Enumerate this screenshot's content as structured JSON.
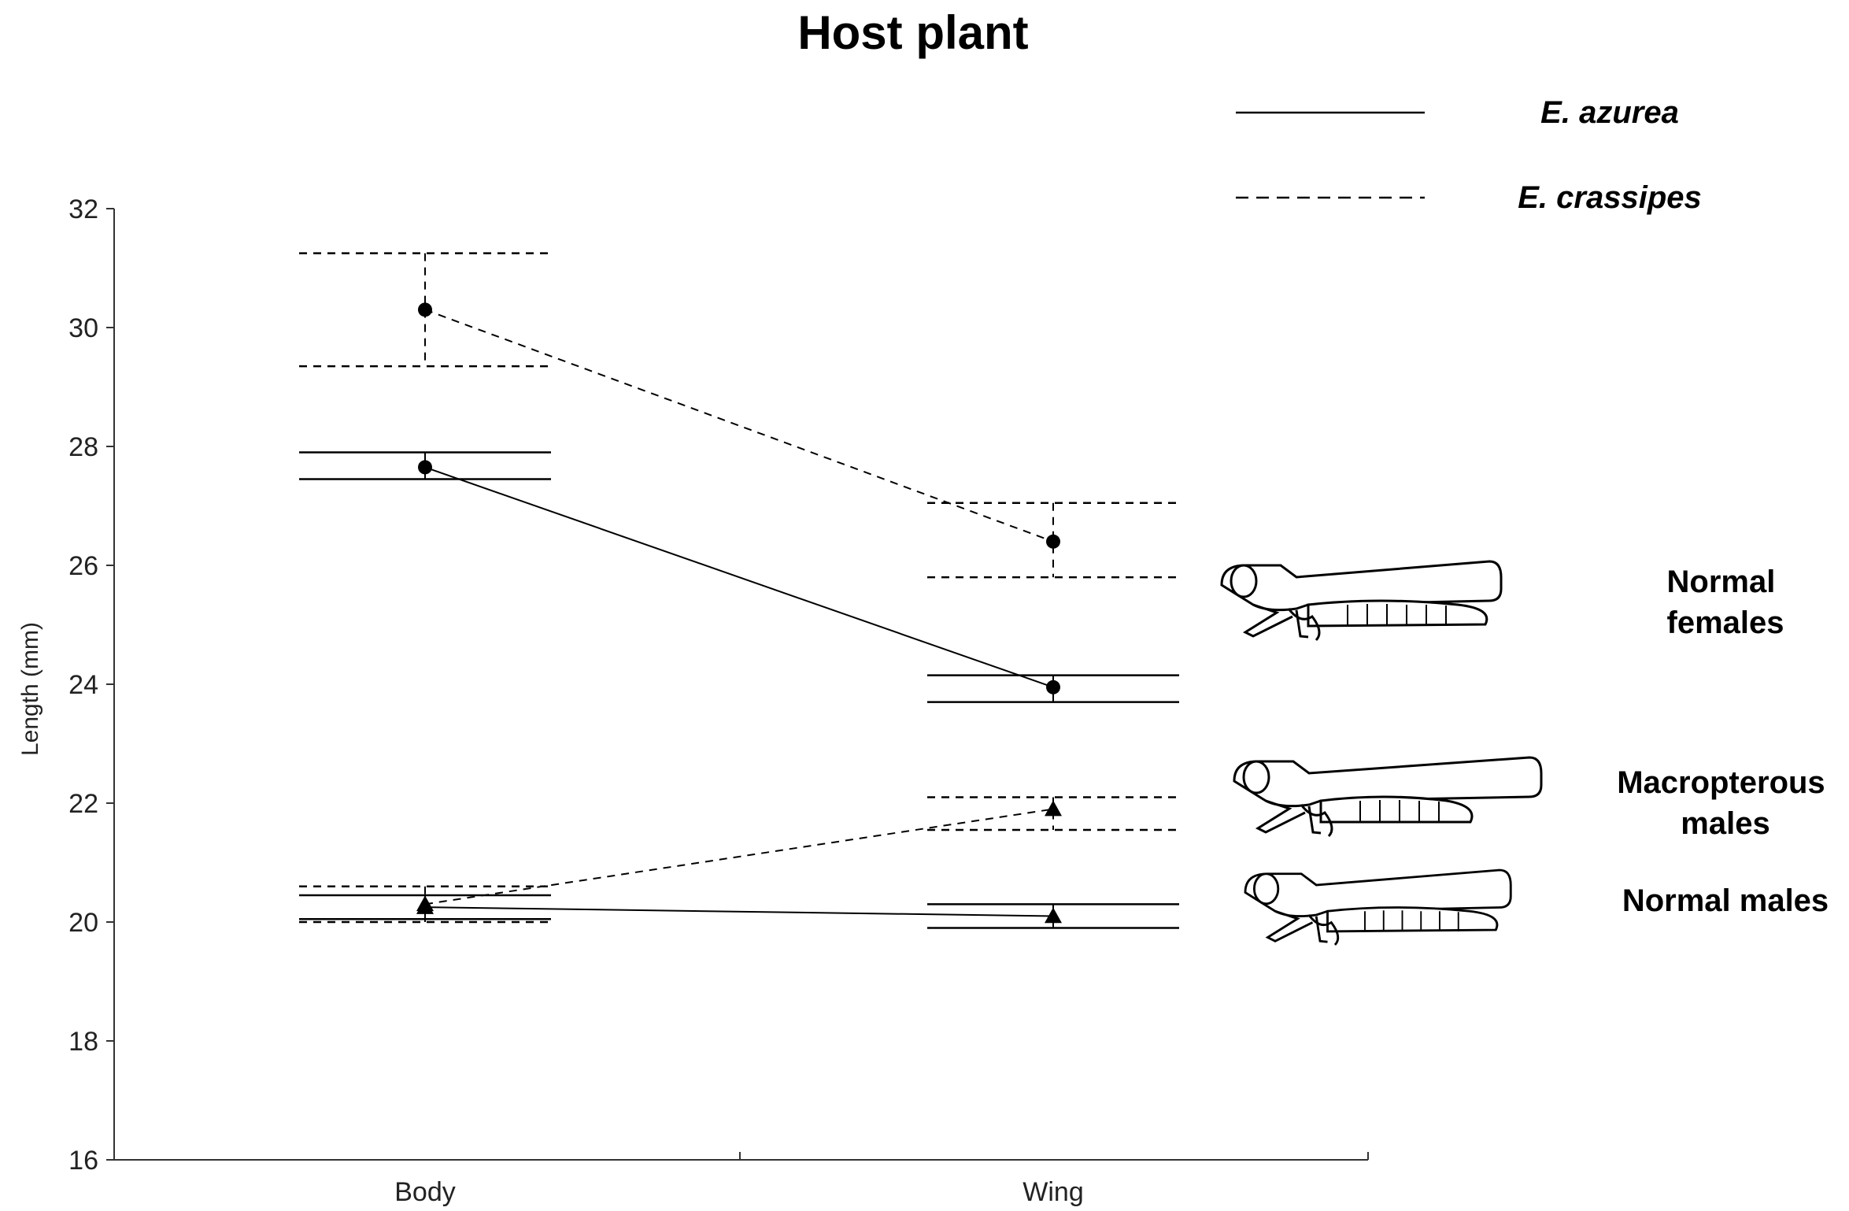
{
  "chart_data": {
    "type": "line",
    "title": "Host plant",
    "xlabel": "",
    "ylabel": "Length (mm)",
    "categories": [
      "Body",
      "Wing"
    ],
    "ylim": [
      16,
      32
    ],
    "yticks": [
      16,
      18,
      20,
      22,
      24,
      26,
      28,
      30,
      32
    ],
    "grid": false,
    "legend_position": "top-right",
    "legend": [
      {
        "label": "E. azurea",
        "style": "solid"
      },
      {
        "label": "E. crassipes",
        "style": "dashed"
      }
    ],
    "series": [
      {
        "name": "E. crassipes",
        "group": "Normal females",
        "style": "dashed",
        "marker": "circle",
        "values": [
          30.3,
          26.4
        ],
        "err_low": [
          29.35,
          25.8
        ],
        "err_high": [
          31.25,
          27.05
        ]
      },
      {
        "name": "E. azurea",
        "group": "Normal females",
        "style": "solid",
        "marker": "circle",
        "values": [
          27.65,
          23.95
        ],
        "err_low": [
          27.45,
          23.7
        ],
        "err_high": [
          27.9,
          24.15
        ]
      },
      {
        "name": "E. crassipes",
        "group": "Macropterous males",
        "style": "dashed",
        "marker": "triangle",
        "values": [
          20.3,
          21.9
        ],
        "err_low": [
          20.0,
          21.55
        ],
        "err_high": [
          20.6,
          22.1
        ]
      },
      {
        "name": "E. azurea",
        "group": "Normal males",
        "style": "solid",
        "marker": "triangle",
        "values": [
          20.25,
          20.1
        ],
        "err_low": [
          20.05,
          19.9
        ],
        "err_high": [
          20.45,
          20.3
        ]
      }
    ],
    "annotations": [
      {
        "lines": [
          "Normal",
          "females"
        ],
        "y": 25.4
      },
      {
        "lines": [
          "Macropterous",
          "males"
        ],
        "y": 21.7
      },
      {
        "lines": [
          "Normal males"
        ],
        "y": 20.3
      }
    ]
  }
}
